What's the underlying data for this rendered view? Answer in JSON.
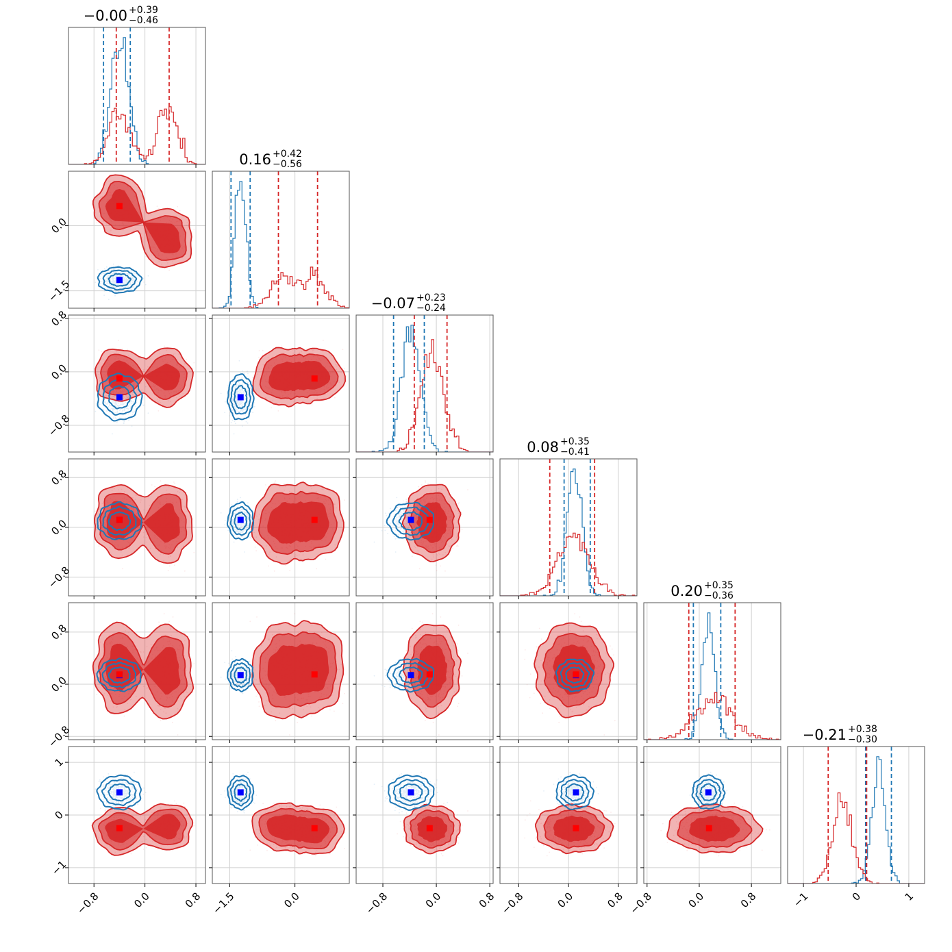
{
  "chart_data": {
    "type": "corner",
    "n_params": 6,
    "colors": {
      "series_a": "#1f77b4",
      "series_b": "#d62728",
      "truth_a": "#0000ff",
      "truth_b": "#ff0000"
    },
    "titles": [
      {
        "median": "−0.00",
        "plus": "+0.39",
        "minus": "−0.46"
      },
      {
        "median": "0.16",
        "plus": "+0.42",
        "minus": "−0.56"
      },
      {
        "median": "−0.07",
        "plus": "+0.23",
        "minus": "−0.24"
      },
      {
        "median": "0.08",
        "plus": "+0.35",
        "minus": "−0.41"
      },
      {
        "median": "0.20",
        "plus": "+0.35",
        "minus": "−0.36"
      },
      {
        "median": "−0.21",
        "plus": "+0.38",
        "minus": "−0.30"
      }
    ],
    "ranges": [
      [
        -1.2,
        0.95
      ],
      [
        -1.9,
        1.25
      ],
      [
        -1.2,
        0.85
      ],
      [
        -1.1,
        1.1
      ],
      [
        -0.85,
        1.25
      ],
      [
        -1.3,
        1.3
      ]
    ],
    "ticks": [
      {
        "values": [
          -0.8,
          0.0,
          0.8
        ],
        "labels": [
          "−0.8",
          "0.0",
          "0.8"
        ]
      },
      {
        "values": [
          -1.5,
          0.0
        ],
        "labels": [
          "−1.5",
          "0.0"
        ]
      },
      {
        "values": [
          -0.8,
          0.0,
          0.8
        ],
        "labels": [
          "−0.8",
          "0.0",
          "0.8"
        ]
      },
      {
        "values": [
          -0.8,
          0.0,
          0.8
        ],
        "labels": [
          "−0.8",
          "0.0",
          "0.8"
        ]
      },
      {
        "values": [
          -0.8,
          0.0,
          0.8
        ],
        "labels": [
          "−0.8",
          "0.0",
          "0.8"
        ]
      },
      {
        "values": [
          -1,
          0,
          1
        ],
        "labels": [
          "−1",
          "0",
          "1"
        ]
      }
    ],
    "series": [
      {
        "color_key": "series_a",
        "quantiles": [
          [
            -0.65,
            -0.23
          ],
          [
            -1.47,
            -1.03
          ],
          [
            -0.64,
            -0.18
          ],
          [
            -0.07,
            0.35
          ],
          [
            -0.09,
            0.33
          ],
          [
            0.18,
            0.67
          ]
        ],
        "modes": [
          {
            "weight": 1.0,
            "mean": [
              -0.4,
              -1.25,
              -0.38,
              0.1,
              0.14,
              0.43
            ],
            "sd": [
              0.14,
              0.12,
              0.14,
              0.12,
              0.1,
              0.13
            ]
          }
        ],
        "truth": [
          -0.4,
          -1.25,
          -0.38,
          0.12,
          0.14,
          0.43
        ]
      },
      {
        "color_key": "series_b",
        "quantiles": [
          [
            -0.45,
            0.38
          ],
          [
            -0.38,
            0.52
          ],
          [
            -0.33,
            0.16
          ],
          [
            -0.3,
            0.42
          ],
          [
            -0.16,
            0.55
          ],
          [
            -0.53,
            0.2
          ]
        ],
        "modes": [
          {
            "weight": 0.5,
            "mean": [
              -0.4,
              0.45,
              -0.05,
              0.1,
              0.25,
              -0.3
            ],
            "sd": [
              0.16,
              0.28,
              0.16,
              0.24,
              0.28,
              0.18
            ]
          },
          {
            "weight": 0.5,
            "mean": [
              0.35,
              -0.3,
              -0.08,
              0.06,
              0.2,
              -0.22
            ],
            "sd": [
              0.16,
              0.28,
              0.18,
              0.26,
              0.3,
              0.18
            ]
          }
        ],
        "truth": [
          -0.4,
          0.45,
          -0.1,
          0.12,
          0.15,
          -0.25
        ]
      }
    ]
  }
}
